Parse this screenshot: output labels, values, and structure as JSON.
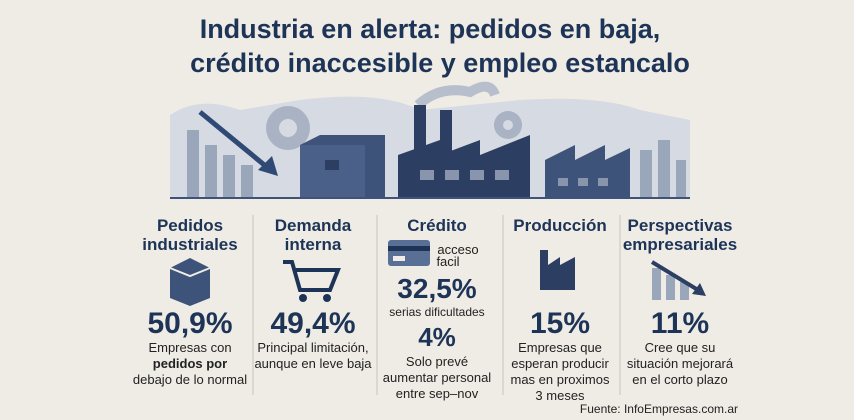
{
  "header": {
    "title_lines": [
      "Industria en alerta: pedidos en baja,",
      "crédito inaccesible y empleo estancalo"
    ]
  },
  "columns": [
    {
      "heading": [
        "Pedidos",
        "industriales"
      ],
      "value": "50,9%",
      "description": [
        "Empresas con",
        "pedidos por",
        "debajo de lo normal"
      ]
    },
    {
      "heading": [
        "Demanda",
        "interna"
      ],
      "value": "49,4%",
      "description": [
        "Principal limitación,",
        "aunque en leve baja"
      ]
    },
    {
      "heading": [
        "Crédito"
      ],
      "icon_label": [
        "acceso",
        "facil"
      ],
      "value": "32,5%",
      "value_caption": "serias dificultades",
      "secondary_value": "4%",
      "description": [
        "Solo prevé",
        "aumentar personal",
        "entre sep–nov"
      ]
    },
    {
      "heading": [
        "Producción"
      ],
      "value": "15%",
      "description": [
        "Empresas que",
        "esperan producir",
        "mas en proximos",
        "3 meses"
      ]
    },
    {
      "heading": [
        "Perspectivas",
        "empresariales"
      ],
      "value": "11%",
      "description": [
        "Cree que su",
        "situación mejorará",
        "en el corto plazo"
      ]
    }
  ],
  "footer": {
    "source": "Fuente: InfoEmpresas.com.ar"
  }
}
